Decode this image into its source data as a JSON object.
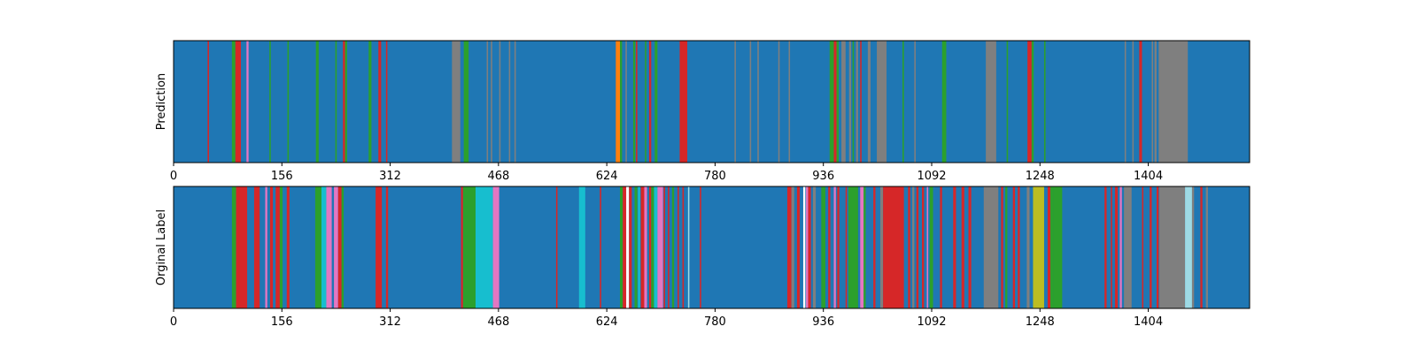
{
  "chart_data": [
    {
      "type": "heatmap",
      "ylabel": "Prediction",
      "xlim": [
        0,
        1550
      ],
      "xticks": [
        0,
        156,
        312,
        468,
        624,
        780,
        936,
        1092,
        1248,
        1404
      ],
      "grid": false,
      "segments": [
        {
          "start": 0,
          "end": 1550,
          "color": "#1f77b4"
        },
        {
          "start": 49,
          "end": 51,
          "color": "#d62728"
        },
        {
          "start": 84,
          "end": 89,
          "color": "#2ca02c"
        },
        {
          "start": 89,
          "end": 97,
          "color": "#d62728"
        },
        {
          "start": 105,
          "end": 108,
          "color": "#e377c2"
        },
        {
          "start": 138,
          "end": 140,
          "color": "#2ca02c"
        },
        {
          "start": 164,
          "end": 166,
          "color": "#2ca02c"
        },
        {
          "start": 205,
          "end": 209,
          "color": "#2ca02c"
        },
        {
          "start": 233,
          "end": 235,
          "color": "#2ca02c"
        },
        {
          "start": 244,
          "end": 247,
          "color": "#d62728"
        },
        {
          "start": 247,
          "end": 250,
          "color": "#2ca02c"
        },
        {
          "start": 281,
          "end": 285,
          "color": "#2ca02c"
        },
        {
          "start": 295,
          "end": 299,
          "color": "#d62728"
        },
        {
          "start": 306,
          "end": 308,
          "color": "#d62728"
        },
        {
          "start": 401,
          "end": 413,
          "color": "#7f7f7f"
        },
        {
          "start": 418,
          "end": 425,
          "color": "#2ca02c"
        },
        {
          "start": 451,
          "end": 453,
          "color": "#7f7f7f"
        },
        {
          "start": 457,
          "end": 459,
          "color": "#7f7f7f"
        },
        {
          "start": 469,
          "end": 471,
          "color": "#7f7f7f"
        },
        {
          "start": 483,
          "end": 485,
          "color": "#7f7f7f"
        },
        {
          "start": 491,
          "end": 493,
          "color": "#7f7f7f"
        },
        {
          "start": 637,
          "end": 643,
          "color": "#ff7f0e"
        },
        {
          "start": 643,
          "end": 646,
          "color": "#2ca02c"
        },
        {
          "start": 651,
          "end": 653,
          "color": "#7f7f7f"
        },
        {
          "start": 662,
          "end": 665,
          "color": "#2ca02c"
        },
        {
          "start": 666,
          "end": 668,
          "color": "#d62728"
        },
        {
          "start": 679,
          "end": 681,
          "color": "#2ca02c"
        },
        {
          "start": 685,
          "end": 688,
          "color": "#d62728"
        },
        {
          "start": 693,
          "end": 697,
          "color": "#2ca02c"
        },
        {
          "start": 729,
          "end": 740,
          "color": "#d62728"
        },
        {
          "start": 808,
          "end": 810,
          "color": "#7f7f7f"
        },
        {
          "start": 830,
          "end": 832,
          "color": "#7f7f7f"
        },
        {
          "start": 841,
          "end": 843,
          "color": "#7f7f7f"
        },
        {
          "start": 871,
          "end": 873,
          "color": "#7f7f7f"
        },
        {
          "start": 886,
          "end": 888,
          "color": "#7f7f7f"
        },
        {
          "start": 945,
          "end": 951,
          "color": "#2ca02c"
        },
        {
          "start": 951,
          "end": 955,
          "color": "#d62728"
        },
        {
          "start": 955,
          "end": 958,
          "color": "#2ca02c"
        },
        {
          "start": 962,
          "end": 968,
          "color": "#7f7f7f"
        },
        {
          "start": 973,
          "end": 976,
          "color": "#7f7f7f"
        },
        {
          "start": 978,
          "end": 980,
          "color": "#2ca02c"
        },
        {
          "start": 983,
          "end": 986,
          "color": "#7f7f7f"
        },
        {
          "start": 989,
          "end": 991,
          "color": "#d62728"
        },
        {
          "start": 1000,
          "end": 1004,
          "color": "#7f7f7f"
        },
        {
          "start": 1013,
          "end": 1027,
          "color": "#7f7f7f"
        },
        {
          "start": 1050,
          "end": 1052,
          "color": "#2ca02c"
        },
        {
          "start": 1067,
          "end": 1069,
          "color": "#7f7f7f"
        },
        {
          "start": 1107,
          "end": 1113,
          "color": "#2ca02c"
        },
        {
          "start": 1170,
          "end": 1185,
          "color": "#7f7f7f"
        },
        {
          "start": 1200,
          "end": 1202,
          "color": "#2ca02c"
        },
        {
          "start": 1230,
          "end": 1236,
          "color": "#d62728"
        },
        {
          "start": 1236,
          "end": 1239,
          "color": "#2ca02c"
        },
        {
          "start": 1254,
          "end": 1256,
          "color": "#2ca02c"
        },
        {
          "start": 1370,
          "end": 1372,
          "color": "#7f7f7f"
        },
        {
          "start": 1381,
          "end": 1383,
          "color": "#7f7f7f"
        },
        {
          "start": 1391,
          "end": 1395,
          "color": "#d62728"
        },
        {
          "start": 1409,
          "end": 1411,
          "color": "#7f7f7f"
        },
        {
          "start": 1413,
          "end": 1416,
          "color": "#7f7f7f"
        },
        {
          "start": 1419,
          "end": 1461,
          "color": "#7f7f7f"
        }
      ]
    },
    {
      "type": "heatmap",
      "ylabel": "Orginal Label",
      "xlim": [
        0,
        1550
      ],
      "xticks": [
        0,
        156,
        312,
        468,
        624,
        780,
        936,
        1092,
        1248,
        1404
      ],
      "grid": false,
      "segments": [
        {
          "start": 0,
          "end": 1550,
          "color": "#1f77b4"
        },
        {
          "start": 84,
          "end": 90,
          "color": "#2ca02c"
        },
        {
          "start": 90,
          "end": 106,
          "color": "#d62728"
        },
        {
          "start": 116,
          "end": 124,
          "color": "#d62728"
        },
        {
          "start": 132,
          "end": 135,
          "color": "#e377c2"
        },
        {
          "start": 139,
          "end": 143,
          "color": "#d62728"
        },
        {
          "start": 147,
          "end": 153,
          "color": "#d62728"
        },
        {
          "start": 153,
          "end": 157,
          "color": "#2ca02c"
        },
        {
          "start": 163,
          "end": 167,
          "color": "#d62728"
        },
        {
          "start": 204,
          "end": 213,
          "color": "#2ca02c"
        },
        {
          "start": 213,
          "end": 220,
          "color": "#17becf"
        },
        {
          "start": 220,
          "end": 228,
          "color": "#e377c2"
        },
        {
          "start": 228,
          "end": 231,
          "color": "#1f77b4"
        },
        {
          "start": 231,
          "end": 237,
          "color": "#e377c2"
        },
        {
          "start": 237,
          "end": 242,
          "color": "#d62728"
        },
        {
          "start": 242,
          "end": 245,
          "color": "#2ca02c"
        },
        {
          "start": 291,
          "end": 300,
          "color": "#d62728"
        },
        {
          "start": 306,
          "end": 309,
          "color": "#d62728"
        },
        {
          "start": 414,
          "end": 417,
          "color": "#d62728"
        },
        {
          "start": 417,
          "end": 435,
          "color": "#2ca02c"
        },
        {
          "start": 435,
          "end": 460,
          "color": "#17becf"
        },
        {
          "start": 460,
          "end": 469,
          "color": "#e377c2"
        },
        {
          "start": 551,
          "end": 553,
          "color": "#d62728"
        },
        {
          "start": 584,
          "end": 593,
          "color": "#17becf"
        },
        {
          "start": 614,
          "end": 616,
          "color": "#d62728"
        },
        {
          "start": 643,
          "end": 647,
          "color": "#2ca02c"
        },
        {
          "start": 647,
          "end": 652,
          "color": "#d62728"
        },
        {
          "start": 652,
          "end": 656,
          "color": "#ffffff"
        },
        {
          "start": 656,
          "end": 660,
          "color": "#d62728"
        },
        {
          "start": 664,
          "end": 668,
          "color": "#2ca02c"
        },
        {
          "start": 669,
          "end": 672,
          "color": "#17becf"
        },
        {
          "start": 673,
          "end": 678,
          "color": "#d62728"
        },
        {
          "start": 678,
          "end": 682,
          "color": "#e377c2"
        },
        {
          "start": 685,
          "end": 688,
          "color": "#d62728"
        },
        {
          "start": 688,
          "end": 692,
          "color": "#2ca02c"
        },
        {
          "start": 692,
          "end": 697,
          "color": "#17becf"
        },
        {
          "start": 697,
          "end": 705,
          "color": "#e377c2"
        },
        {
          "start": 706,
          "end": 708,
          "color": "#d62728"
        },
        {
          "start": 712,
          "end": 714,
          "color": "#d62728"
        },
        {
          "start": 718,
          "end": 721,
          "color": "#2ca02c"
        },
        {
          "start": 726,
          "end": 728,
          "color": "#d62728"
        },
        {
          "start": 733,
          "end": 735,
          "color": "#d62728"
        },
        {
          "start": 741,
          "end": 743,
          "color": "#9edae5"
        },
        {
          "start": 758,
          "end": 760,
          "color": "#d62728"
        },
        {
          "start": 884,
          "end": 890,
          "color": "#d62728"
        },
        {
          "start": 890,
          "end": 894,
          "color": "#7f7f7f"
        },
        {
          "start": 898,
          "end": 902,
          "color": "#d62728"
        },
        {
          "start": 907,
          "end": 910,
          "color": "#ffffff"
        },
        {
          "start": 911,
          "end": 914,
          "color": "#e377c2"
        },
        {
          "start": 914,
          "end": 918,
          "color": "#d62728"
        },
        {
          "start": 921,
          "end": 925,
          "color": "#7f7f7f"
        },
        {
          "start": 933,
          "end": 939,
          "color": "#2ca02c"
        },
        {
          "start": 943,
          "end": 946,
          "color": "#d62728"
        },
        {
          "start": 951,
          "end": 954,
          "color": "#e377c2"
        },
        {
          "start": 956,
          "end": 959,
          "color": "#d62728"
        },
        {
          "start": 968,
          "end": 970,
          "color": "#d62728"
        },
        {
          "start": 972,
          "end": 986,
          "color": "#2ca02c"
        },
        {
          "start": 989,
          "end": 994,
          "color": "#e377c2"
        },
        {
          "start": 994,
          "end": 997,
          "color": "#2ca02c"
        },
        {
          "start": 1008,
          "end": 1011,
          "color": "#d62728"
        },
        {
          "start": 1018,
          "end": 1022,
          "color": "#7f7f7f"
        },
        {
          "start": 1022,
          "end": 1052,
          "color": "#d62728"
        },
        {
          "start": 1058,
          "end": 1061,
          "color": "#d62728"
        },
        {
          "start": 1064,
          "end": 1067,
          "color": "#7f7f7f"
        },
        {
          "start": 1070,
          "end": 1073,
          "color": "#d62728"
        },
        {
          "start": 1078,
          "end": 1081,
          "color": "#d62728"
        },
        {
          "start": 1085,
          "end": 1087,
          "color": "#e377c2"
        },
        {
          "start": 1089,
          "end": 1094,
          "color": "#2ca02c"
        },
        {
          "start": 1104,
          "end": 1107,
          "color": "#d62728"
        },
        {
          "start": 1123,
          "end": 1127,
          "color": "#d62728"
        },
        {
          "start": 1135,
          "end": 1139,
          "color": "#d62728"
        },
        {
          "start": 1145,
          "end": 1149,
          "color": "#d62728"
        },
        {
          "start": 1167,
          "end": 1188,
          "color": "#7f7f7f"
        },
        {
          "start": 1192,
          "end": 1195,
          "color": "#d62728"
        },
        {
          "start": 1198,
          "end": 1201,
          "color": "#2ca02c"
        },
        {
          "start": 1209,
          "end": 1212,
          "color": "#d62728"
        },
        {
          "start": 1216,
          "end": 1219,
          "color": "#d62728"
        },
        {
          "start": 1229,
          "end": 1233,
          "color": "#7f7f7f"
        },
        {
          "start": 1238,
          "end": 1254,
          "color": "#bcbd22"
        },
        {
          "start": 1259,
          "end": 1263,
          "color": "#d62728"
        },
        {
          "start": 1263,
          "end": 1268,
          "color": "#2ca02c"
        },
        {
          "start": 1268,
          "end": 1280,
          "color": "#2ca02c"
        },
        {
          "start": 1341,
          "end": 1344,
          "color": "#d62728"
        },
        {
          "start": 1350,
          "end": 1352,
          "color": "#d62728"
        },
        {
          "start": 1356,
          "end": 1360,
          "color": "#d62728"
        },
        {
          "start": 1363,
          "end": 1366,
          "color": "#e377c2"
        },
        {
          "start": 1369,
          "end": 1380,
          "color": "#7f7f7f"
        },
        {
          "start": 1395,
          "end": 1397,
          "color": "#d62728"
        },
        {
          "start": 1406,
          "end": 1409,
          "color": "#d62728"
        },
        {
          "start": 1416,
          "end": 1419,
          "color": "#d62728"
        },
        {
          "start": 1420,
          "end": 1457,
          "color": "#7f7f7f"
        },
        {
          "start": 1457,
          "end": 1467,
          "color": "#9edae5"
        },
        {
          "start": 1467,
          "end": 1470,
          "color": "#7f7f7f"
        },
        {
          "start": 1479,
          "end": 1482,
          "color": "#d62728"
        },
        {
          "start": 1487,
          "end": 1490,
          "color": "#7f7f7f"
        }
      ]
    }
  ]
}
